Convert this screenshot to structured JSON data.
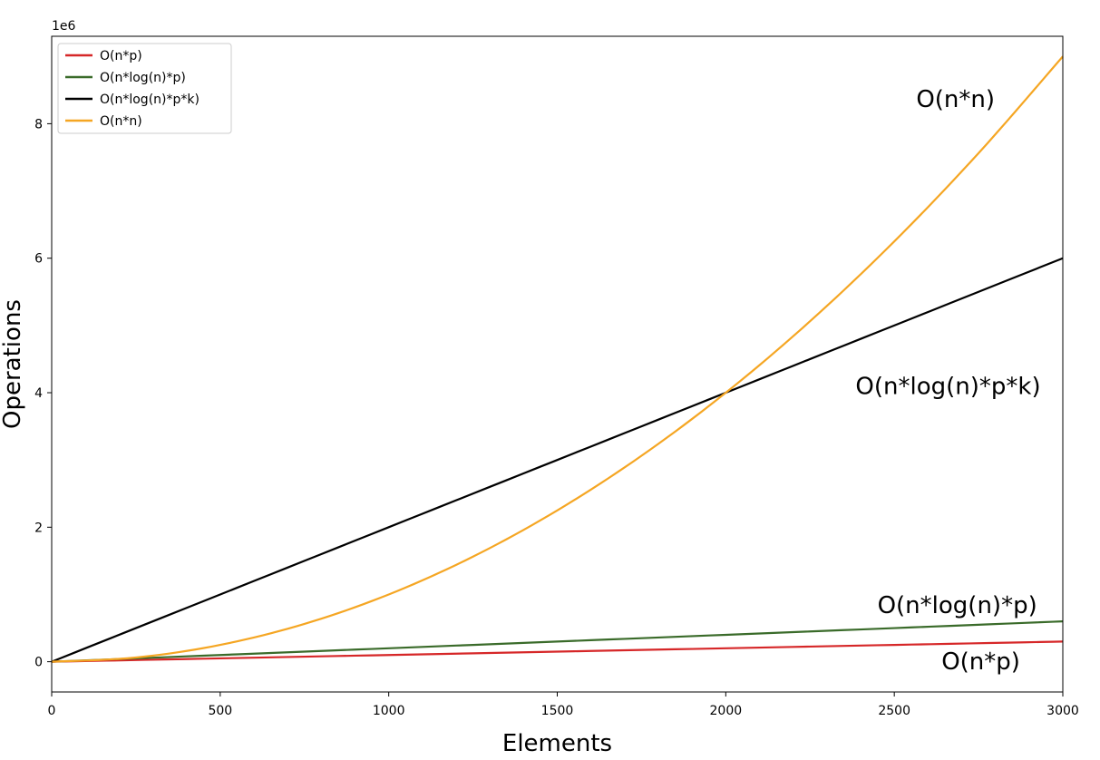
{
  "chart_data": {
    "type": "line",
    "xlabel": "Elements",
    "ylabel": "Operations",
    "y_offset_label": "1e6",
    "xlim": [
      0,
      3000
    ],
    "ylim": [
      -0.45,
      9.3
    ],
    "xticks": [
      0,
      500,
      1000,
      1500,
      2000,
      2500,
      3000
    ],
    "xtick_labels": [
      "0",
      "500",
      "1000",
      "1500",
      "2000",
      "2500",
      "3000"
    ],
    "yticks": [
      0,
      2,
      4,
      6,
      8
    ],
    "ytick_labels": [
      "0",
      "2",
      "4",
      "6",
      "8"
    ],
    "grid": false,
    "legend_position": "top-left",
    "series": [
      {
        "name": "O(n*p)",
        "color": "#d62728",
        "x": [
          0,
          500,
          1000,
          1500,
          2000,
          2500,
          3000
        ],
        "y": [
          0,
          0.05,
          0.1,
          0.15,
          0.2,
          0.25,
          0.3
        ]
      },
      {
        "name": "O(n*log(n)*p)",
        "color": "#3a6b2a",
        "x": [
          0,
          500,
          1000,
          1500,
          2000,
          2500,
          3000
        ],
        "y": [
          0,
          0.1,
          0.2,
          0.3,
          0.4,
          0.5,
          0.6
        ]
      },
      {
        "name": "O(n*log(n)*p*k)",
        "color": "#000000",
        "x": [
          0,
          500,
          1000,
          1500,
          2000,
          2500,
          3000
        ],
        "y": [
          0,
          1.0,
          2.0,
          3.0,
          4.0,
          5.0,
          6.0
        ]
      },
      {
        "name": "O(n*n)",
        "color": "#f5a623",
        "x": [
          0,
          250,
          500,
          750,
          1000,
          1250,
          1500,
          1750,
          2000,
          2250,
          2500,
          2750,
          3000
        ],
        "y": [
          0,
          0.0625,
          0.25,
          0.5625,
          1.0,
          1.5625,
          2.25,
          3.0625,
          4.0,
          5.0625,
          6.25,
          7.5625,
          9.0
        ]
      }
    ],
    "annotations": [
      {
        "text": "O(n*n)",
        "x": 2565,
        "y": 8.25
      },
      {
        "text": "O(n*log(n)*p*k)",
        "x": 2385,
        "y": 3.98
      },
      {
        "text": "O(n*log(n)*p)",
        "x": 2450,
        "y": 0.72
      },
      {
        "text": "O(n*p)",
        "x": 2640,
        "y": -0.11
      }
    ]
  }
}
